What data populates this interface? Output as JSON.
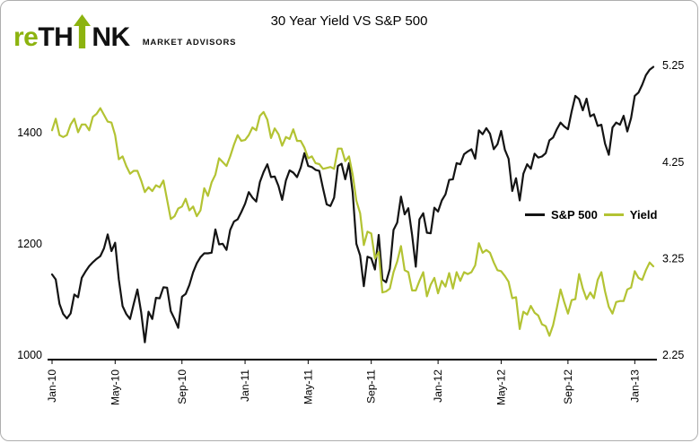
{
  "brand": {
    "logo_re": "re",
    "logo_th": "TH",
    "logo_nk": "NK",
    "tagline": "MARKET ADVISORS",
    "green": "#8cb30f"
  },
  "chart_data": {
    "type": "line",
    "title": "30 Year Yield VS S&P 500",
    "legend_position": "middle-right",
    "grid": false,
    "legend": [
      {
        "name": "S&P 500",
        "color": "#141414"
      },
      {
        "name": "Yield",
        "color": "#b3c333"
      }
    ],
    "x_tick_labels": [
      "Jan-10",
      "May-10",
      "Sep-10",
      "Jan-11",
      "May-11",
      "Sep-11",
      "Jan-12",
      "May-12",
      "Sep-12",
      "Jan-13"
    ],
    "x_tick_indices": [
      0,
      17,
      35,
      52,
      69,
      86,
      104,
      121,
      139,
      157
    ],
    "y_left": {
      "label": "S&P 500",
      "ticks": [
        1000,
        1200,
        1400
      ],
      "min": 1000,
      "max": 1548
    },
    "y_right": {
      "label": "30 Year Yield",
      "ticks": [
        2.25,
        3.25,
        4.25,
        5.25
      ],
      "min": 2.25,
      "max": 5.41
    },
    "series": [
      {
        "name": "S&P 500",
        "axis": "left",
        "color": "#141414",
        "values": [
          1145,
          1136,
          1092,
          1074,
          1066,
          1075,
          1109,
          1104,
          1139,
          1150,
          1160,
          1167,
          1173,
          1178,
          1192,
          1217,
          1187,
          1202,
          1136,
          1088,
          1074,
          1065,
          1092,
          1118,
          1077,
          1023,
          1078,
          1065,
          1103,
          1102,
          1122,
          1121,
          1079,
          1065,
          1049,
          1105,
          1110,
          1126,
          1149,
          1165,
          1176,
          1183,
          1183,
          1184,
          1226,
          1199,
          1200,
          1189,
          1225,
          1240,
          1244,
          1257,
          1272,
          1293,
          1283,
          1276,
          1311,
          1329,
          1343,
          1320,
          1321,
          1304,
          1279,
          1314,
          1332,
          1328,
          1320,
          1337,
          1363,
          1340,
          1338,
          1333,
          1331,
          1300,
          1271,
          1268,
          1283,
          1340,
          1344,
          1316,
          1345,
          1292,
          1200,
          1179,
          1124,
          1177,
          1174,
          1154,
          1216,
          1136,
          1131,
          1155,
          1225,
          1238,
          1285,
          1253,
          1264,
          1216,
          1159,
          1244,
          1255,
          1220,
          1219,
          1265,
          1258,
          1278,
          1289,
          1315,
          1316,
          1345,
          1343,
          1361,
          1366,
          1370,
          1353,
          1404,
          1397,
          1408,
          1398,
          1370,
          1379,
          1403,
          1369,
          1353,
          1295,
          1318,
          1278,
          1326,
          1343,
          1335,
          1362,
          1355,
          1357,
          1363,
          1386,
          1391,
          1406,
          1418,
          1411,
          1406,
          1438,
          1466,
          1460,
          1440,
          1461,
          1429,
          1433,
          1412,
          1414,
          1380,
          1360,
          1409,
          1418,
          1414,
          1430,
          1402,
          1426,
          1466,
          1472,
          1486,
          1503,
          1513,
          1518
        ]
      },
      {
        "name": "Yield",
        "axis": "right",
        "color": "#b3c333",
        "values": [
          4.58,
          4.7,
          4.53,
          4.51,
          4.53,
          4.64,
          4.7,
          4.56,
          4.64,
          4.64,
          4.58,
          4.72,
          4.75,
          4.81,
          4.74,
          4.67,
          4.66,
          4.53,
          4.28,
          4.31,
          4.21,
          4.13,
          4.16,
          4.16,
          4.06,
          3.94,
          3.99,
          3.95,
          4.01,
          3.99,
          4.06,
          3.86,
          3.66,
          3.69,
          3.77,
          3.79,
          3.87,
          3.75,
          3.79,
          3.69,
          3.75,
          3.98,
          3.9,
          4.04,
          4.12,
          4.29,
          4.25,
          4.21,
          4.31,
          4.43,
          4.53,
          4.47,
          4.48,
          4.53,
          4.61,
          4.58,
          4.73,
          4.77,
          4.69,
          4.5,
          4.6,
          4.54,
          4.42,
          4.51,
          4.49,
          4.59,
          4.47,
          4.47,
          4.4,
          4.29,
          4.31,
          4.24,
          4.23,
          4.18,
          4.19,
          4.2,
          4.18,
          4.39,
          4.39,
          4.26,
          4.31,
          4.12,
          3.85,
          3.72,
          3.39,
          3.53,
          3.51,
          3.25,
          3.32,
          2.9,
          2.91,
          2.94,
          3.11,
          3.22,
          3.38,
          3.13,
          3.11,
          2.92,
          2.92,
          3.02,
          3.11,
          2.86,
          2.98,
          3.05,
          2.89,
          3.02,
          2.96,
          3.1,
          2.94,
          3.11,
          3.02,
          3.11,
          3.09,
          3.11,
          3.18,
          3.41,
          3.31,
          3.34,
          3.31,
          3.21,
          3.13,
          3.12,
          3.07,
          3.01,
          2.84,
          2.85,
          2.52,
          2.7,
          2.67,
          2.76,
          2.69,
          2.66,
          2.57,
          2.55,
          2.45,
          2.56,
          2.74,
          2.93,
          2.8,
          2.68,
          2.82,
          2.83,
          3.09,
          2.94,
          2.83,
          2.9,
          2.84,
          3.03,
          3.11,
          2.91,
          2.75,
          2.68,
          2.8,
          2.81,
          2.81,
          2.93,
          2.95,
          3.12,
          3.05,
          3.03,
          3.13,
          3.21,
          3.17
        ]
      }
    ]
  }
}
